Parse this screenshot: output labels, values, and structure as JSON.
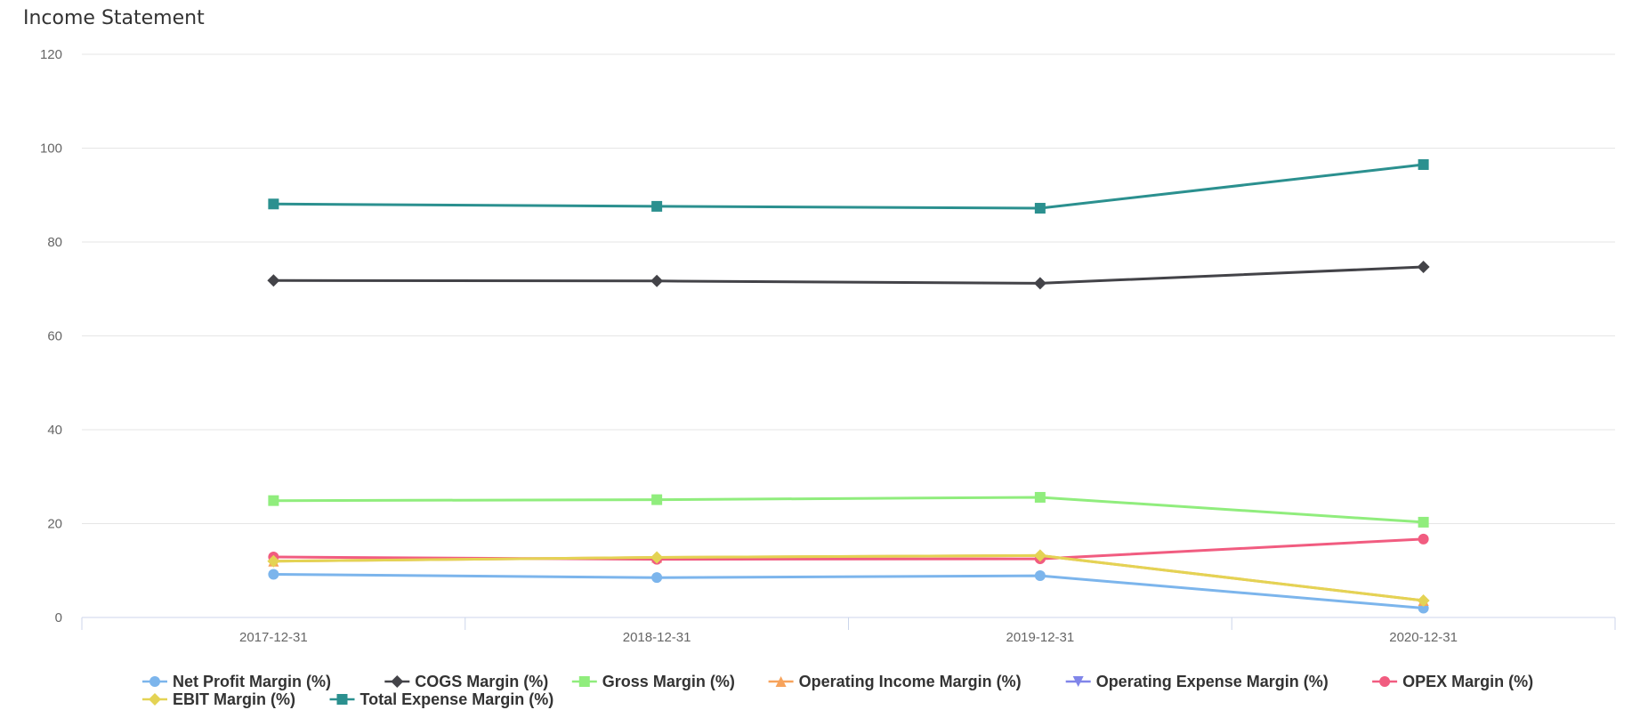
{
  "chart_data": {
    "type": "line",
    "title": "Income Statement",
    "xlabel": "",
    "ylabel": "",
    "ylim": [
      0,
      120
    ],
    "yticks": [
      0,
      20,
      40,
      60,
      80,
      100,
      120
    ],
    "categories": [
      "2017-12-31",
      "2018-12-31",
      "2019-12-31",
      "2020-12-31"
    ],
    "grid": true,
    "legend_position": "bottom",
    "series": [
      {
        "name": "Net Profit Margin (%)",
        "color": "#7cb5ec",
        "marker": "circle",
        "values": [
          9.2,
          8.5,
          8.9,
          2.0
        ]
      },
      {
        "name": "COGS Margin (%)",
        "color": "#434348",
        "marker": "diamond",
        "values": [
          71.8,
          71.7,
          71.2,
          74.7
        ]
      },
      {
        "name": "Gross Margin (%)",
        "color": "#90ed7d",
        "marker": "square",
        "values": [
          24.9,
          25.1,
          25.6,
          20.3
        ]
      },
      {
        "name": "Operating Income Margin (%)",
        "color": "#f7a35c",
        "marker": "triangle",
        "values": [
          12.0,
          12.8,
          13.2,
          3.6
        ]
      },
      {
        "name": "Operating Expense Margin (%)",
        "color": "#8085e9",
        "marker": "triangle-down",
        "values": [
          null,
          null,
          null,
          null
        ]
      },
      {
        "name": "OPEX Margin (%)",
        "color": "#f15c80",
        "marker": "circle",
        "values": [
          12.9,
          12.4,
          12.5,
          16.7
        ]
      },
      {
        "name": "EBIT Margin (%)",
        "color": "#e4d354",
        "marker": "diamond",
        "values": [
          12.0,
          12.8,
          13.2,
          3.6
        ]
      },
      {
        "name": "Total Expense Margin (%)",
        "color": "#2b908f",
        "marker": "square",
        "values": [
          88.1,
          87.6,
          87.2,
          96.5
        ]
      }
    ]
  }
}
